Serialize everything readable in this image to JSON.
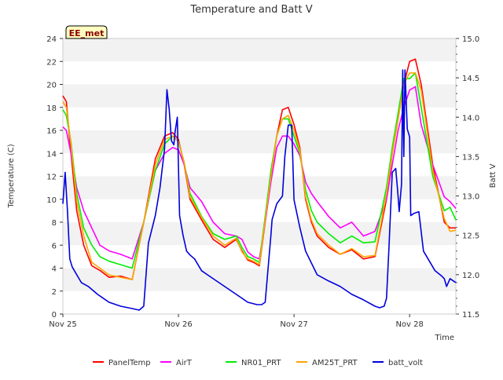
{
  "chart_data": {
    "type": "line",
    "title": "Temperature and Batt V",
    "xlabel": "Time",
    "ylabel": "Temperature (C)",
    "y2label": "Batt V",
    "badge": "EE_met",
    "x_range": [
      0,
      3.4
    ],
    "x_ticks": [
      {
        "pos": 0,
        "label": "Nov 25"
      },
      {
        "pos": 1,
        "label": "Nov 26"
      },
      {
        "pos": 2,
        "label": "Nov 27"
      },
      {
        "pos": 3,
        "label": "Nov 28"
      }
    ],
    "ylim": [
      0,
      24
    ],
    "y_ticks": [
      0,
      2,
      4,
      6,
      8,
      10,
      12,
      14,
      16,
      18,
      20,
      22,
      24
    ],
    "y2lim": [
      11.5,
      15.0
    ],
    "y2_ticks": [
      "11.5",
      "12.0",
      "12.5",
      "13.0",
      "13.5",
      "14.0",
      "14.5",
      "15.0"
    ],
    "grid": "horizontal bands",
    "legend_position": "bottom",
    "series": [
      {
        "name": "PanelTemp",
        "color": "#ff0000",
        "axis": "left",
        "x": [
          0,
          0.03,
          0.07,
          0.12,
          0.18,
          0.25,
          0.32,
          0.4,
          0.5,
          0.6,
          0.7,
          0.8,
          0.88,
          0.95,
          1.0,
          1.05,
          1.1,
          1.2,
          1.3,
          1.4,
          1.5,
          1.55,
          1.6,
          1.65,
          1.7,
          1.75,
          1.8,
          1.85,
          1.9,
          1.95,
          2.0,
          2.05,
          2.1,
          2.15,
          2.2,
          2.3,
          2.4,
          2.5,
          2.6,
          2.7,
          2.8,
          2.85,
          2.9,
          2.95,
          3.0,
          3.05,
          3.1,
          3.2,
          3.3,
          3.35,
          3.4
        ],
        "y": [
          19,
          18.5,
          14,
          9,
          6,
          4.2,
          3.8,
          3.2,
          3.3,
          3.0,
          8,
          13.5,
          15.5,
          15.8,
          15.2,
          13,
          10,
          8.2,
          6.5,
          5.8,
          6.5,
          5.5,
          4.7,
          4.5,
          4.2,
          8,
          12,
          15.5,
          17.8,
          18,
          16.5,
          14.5,
          10,
          8,
          6.8,
          5.8,
          5.2,
          5.6,
          4.8,
          5.0,
          10,
          14,
          17,
          20,
          22,
          22.2,
          20,
          13,
          8,
          7.5,
          7.5
        ]
      },
      {
        "name": "AirT",
        "color": "#ff00ff",
        "axis": "left",
        "x": [
          0,
          0.03,
          0.07,
          0.12,
          0.18,
          0.25,
          0.32,
          0.4,
          0.5,
          0.6,
          0.7,
          0.8,
          0.88,
          0.95,
          1.0,
          1.05,
          1.1,
          1.2,
          1.3,
          1.4,
          1.5,
          1.55,
          1.6,
          1.65,
          1.7,
          1.75,
          1.8,
          1.85,
          1.9,
          1.95,
          2.0,
          2.05,
          2.1,
          2.15,
          2.2,
          2.3,
          2.4,
          2.5,
          2.6,
          2.7,
          2.8,
          2.85,
          2.9,
          2.95,
          3.0,
          3.05,
          3.1,
          3.2,
          3.3,
          3.35,
          3.4
        ],
        "y": [
          16.3,
          16,
          14,
          11,
          9,
          7.5,
          6,
          5.5,
          5.2,
          4.8,
          8,
          12.5,
          14,
          14.5,
          14.3,
          13,
          11,
          9.8,
          8,
          7,
          6.8,
          6.5,
          5.4,
          5,
          4.8,
          8,
          11.5,
          14.5,
          15.5,
          15.5,
          14.8,
          13.8,
          11.5,
          10.5,
          9.8,
          8.5,
          7.5,
          8,
          6.8,
          7.2,
          10,
          13,
          16,
          18,
          19.5,
          19.8,
          16.5,
          13,
          10.2,
          9.8,
          9.2
        ]
      },
      {
        "name": "NR01_PRT",
        "color": "#00ee00",
        "axis": "left",
        "x": [
          0,
          0.03,
          0.07,
          0.12,
          0.18,
          0.25,
          0.32,
          0.4,
          0.5,
          0.6,
          0.7,
          0.8,
          0.88,
          0.95,
          1.0,
          1.05,
          1.1,
          1.2,
          1.3,
          1.4,
          1.5,
          1.55,
          1.6,
          1.65,
          1.7,
          1.75,
          1.8,
          1.85,
          1.9,
          1.95,
          2.0,
          2.05,
          2.1,
          2.15,
          2.2,
          2.3,
          2.4,
          2.5,
          2.6,
          2.7,
          2.8,
          2.85,
          2.9,
          2.95,
          3.0,
          3.05,
          3.1,
          3.2,
          3.3,
          3.35,
          3.4
        ],
        "y": [
          17.8,
          17.3,
          15,
          10.5,
          7.5,
          6,
          5,
          4.6,
          4.3,
          4.0,
          8,
          12.5,
          14.8,
          15.5,
          15,
          13.2,
          10.5,
          8.5,
          7,
          6.5,
          6.8,
          5.8,
          5,
          4.8,
          4.5,
          8.5,
          12.5,
          15.5,
          17,
          17,
          15.5,
          14,
          10.8,
          9,
          8,
          7,
          6.2,
          6.8,
          6.2,
          6.3,
          11,
          14.5,
          17.5,
          20.5,
          20.5,
          21,
          18,
          12,
          9,
          9.3,
          8.2
        ]
      },
      {
        "name": "AM25T_PRT",
        "color": "#ffa500",
        "axis": "left",
        "x": [
          0,
          0.03,
          0.07,
          0.12,
          0.18,
          0.25,
          0.32,
          0.4,
          0.5,
          0.6,
          0.7,
          0.8,
          0.88,
          0.95,
          1.0,
          1.05,
          1.1,
          1.2,
          1.3,
          1.4,
          1.5,
          1.55,
          1.6,
          1.65,
          1.7,
          1.75,
          1.8,
          1.85,
          1.9,
          1.95,
          2.0,
          2.05,
          2.1,
          2.15,
          2.2,
          2.3,
          2.4,
          2.5,
          2.6,
          2.7,
          2.8,
          2.85,
          2.9,
          2.95,
          3.0,
          3.05,
          3.1,
          3.2,
          3.3,
          3.35,
          3.4
        ],
        "y": [
          18.5,
          18,
          14.8,
          9.8,
          6.8,
          4.5,
          4,
          3.4,
          3.2,
          3.0,
          8,
          13,
          15.2,
          15.5,
          15,
          13.2,
          10.2,
          8.4,
          6.8,
          6,
          6.6,
          5.4,
          4.8,
          4.6,
          4.3,
          8.2,
          12,
          15.5,
          17,
          17.3,
          16,
          14.3,
          10.2,
          8.2,
          7,
          6,
          5.2,
          5.7,
          5,
          5.1,
          10.5,
          14,
          17,
          20,
          21,
          21,
          19.5,
          12.5,
          8.3,
          7.2,
          7.3
        ]
      },
      {
        "name": "batt_volt",
        "color": "#0000dd",
        "axis": "right",
        "x": [
          0,
          0.02,
          0.04,
          0.06,
          0.08,
          0.12,
          0.16,
          0.22,
          0.3,
          0.4,
          0.5,
          0.6,
          0.66,
          0.7,
          0.74,
          0.8,
          0.84,
          0.88,
          0.9,
          0.92,
          0.94,
          0.96,
          0.97,
          0.99,
          1.01,
          1.04,
          1.07,
          1.1,
          1.14,
          1.2,
          1.25,
          1.35,
          1.45,
          1.55,
          1.6,
          1.68,
          1.72,
          1.75,
          1.8,
          1.81,
          1.85,
          1.9,
          1.92,
          1.95,
          1.96,
          1.98,
          2.0,
          2.05,
          2.1,
          2.2,
          2.3,
          2.4,
          2.5,
          2.6,
          2.7,
          2.74,
          2.78,
          2.8,
          2.82,
          2.85,
          2.88,
          2.9,
          2.91,
          2.93,
          2.94,
          2.95,
          2.96,
          2.98,
          3.0,
          3.01,
          3.04,
          3.08,
          3.12,
          3.16,
          3.22,
          3.28,
          3.3,
          3.32,
          3.35,
          3.4
        ],
        "y": [
          12.9,
          13.3,
          12.8,
          12.2,
          12.1,
          12.0,
          11.9,
          11.85,
          11.75,
          11.65,
          11.6,
          11.57,
          11.55,
          11.6,
          12.4,
          12.75,
          13.1,
          13.6,
          14.35,
          14.1,
          13.7,
          13.65,
          13.8,
          14.0,
          12.75,
          12.5,
          12.3,
          12.25,
          12.2,
          12.05,
          12.0,
          11.9,
          11.8,
          11.7,
          11.65,
          11.62,
          11.62,
          11.65,
          12.5,
          12.7,
          12.9,
          13.0,
          13.5,
          13.9,
          13.9,
          13.9,
          12.95,
          12.6,
          12.3,
          12.0,
          11.92,
          11.85,
          11.75,
          11.68,
          11.6,
          11.58,
          11.6,
          11.7,
          12.3,
          13.3,
          13.35,
          13.0,
          12.8,
          13.15,
          14.6,
          13.5,
          14.6,
          13.85,
          13.75,
          12.75,
          12.78,
          12.8,
          12.3,
          12.2,
          12.05,
          11.98,
          11.95,
          11.85,
          11.95,
          11.9
        ]
      }
    ]
  }
}
